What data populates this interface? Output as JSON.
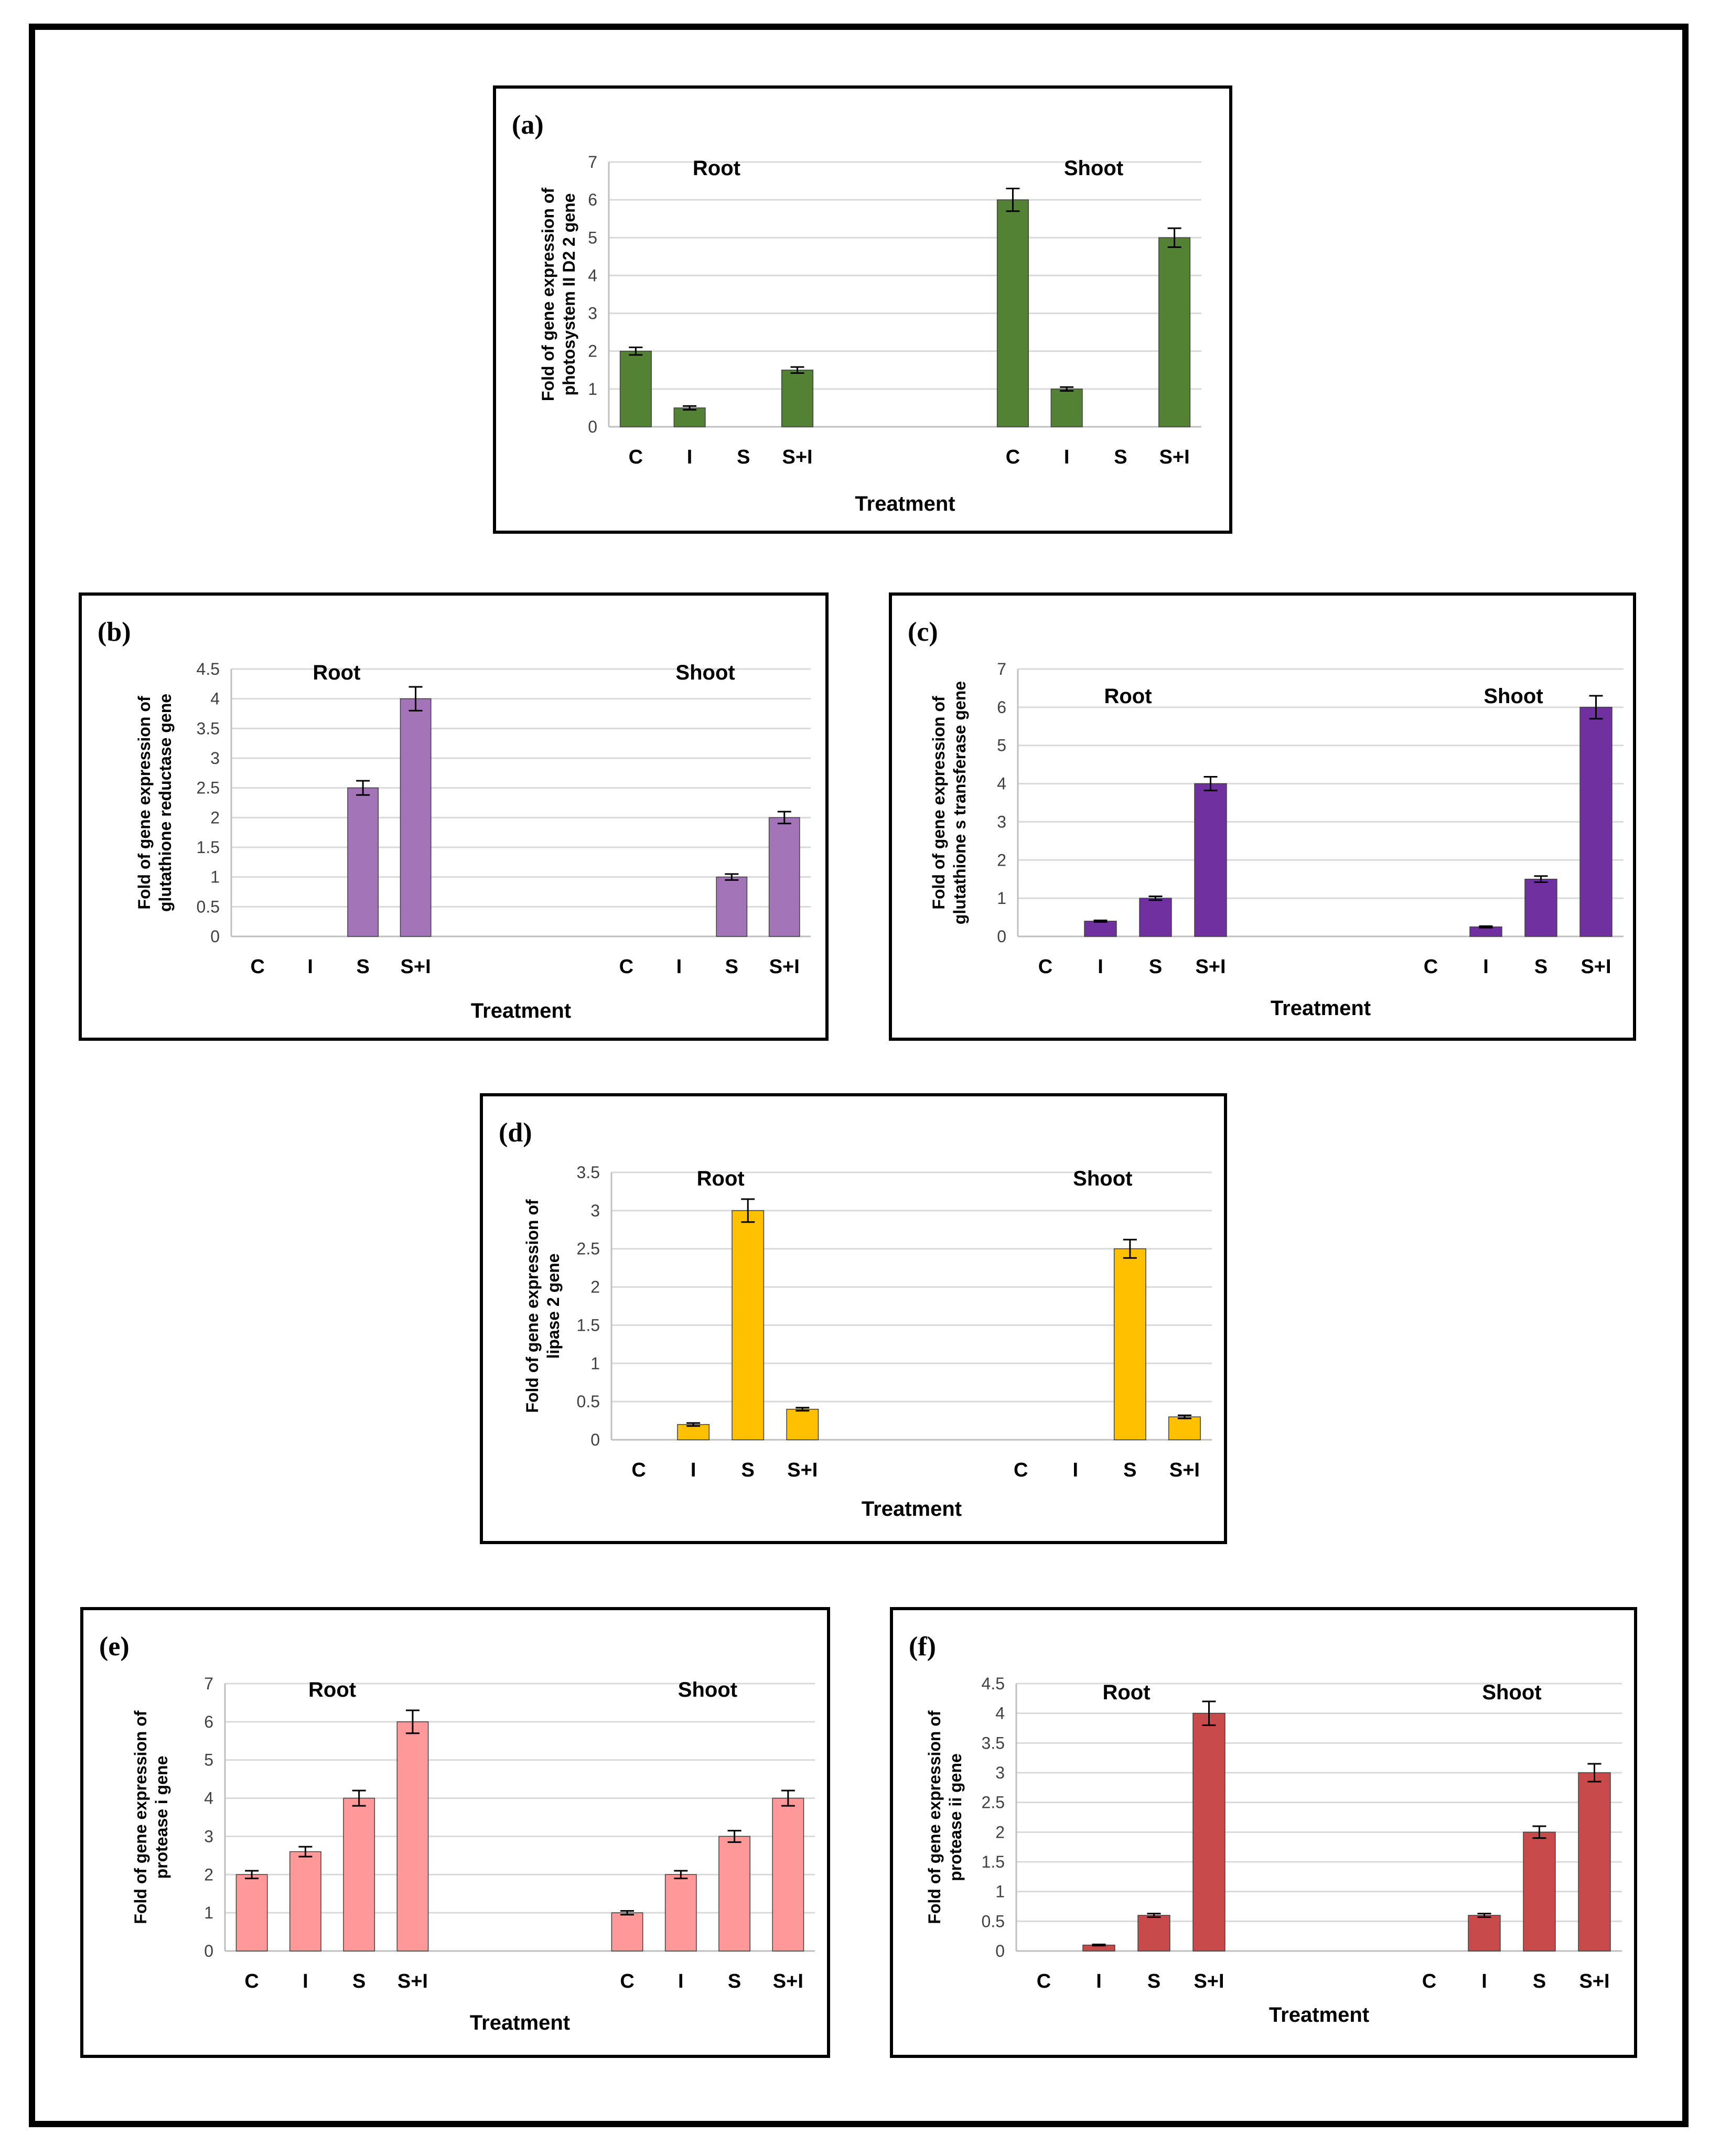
{
  "chart_data": [
    {
      "type": "bar",
      "panel_label": "(a)",
      "categories": [
        "C",
        "I",
        "S",
        "S+I",
        "C",
        "I",
        "S",
        "S+I"
      ],
      "groups": [
        "Root",
        "Shoot"
      ],
      "values": [
        2,
        0.5,
        0,
        1.5,
        6,
        1,
        0,
        5
      ],
      "errors": [
        0.1,
        0.05,
        0,
        0.08,
        0.3,
        0.05,
        0,
        0.25
      ],
      "ylabel": [
        "Fold of gene expression of",
        "photosystem II D2 2 gene"
      ],
      "xlabel": "Treatment",
      "ylim": [
        0,
        7
      ],
      "yticks": [
        0,
        1,
        2,
        3,
        4,
        5,
        6,
        7
      ],
      "ytick_labels": [
        "0",
        "1",
        "2",
        "3",
        "4",
        "5",
        "6",
        "7"
      ],
      "grid": true,
      "color": "#548235"
    },
    {
      "type": "bar",
      "panel_label": "(b)",
      "categories": [
        "C",
        "I",
        "S",
        "S+I",
        "C",
        "I",
        "S",
        "S+I"
      ],
      "groups": [
        "Root",
        "Shoot"
      ],
      "values": [
        0,
        0,
        2.5,
        4,
        0,
        0,
        1,
        2
      ],
      "errors": [
        0,
        0,
        0.12,
        0.2,
        0,
        0,
        0.05,
        0.1
      ],
      "ylabel": [
        "Fold of gene expression of",
        "glutathione reductase gene"
      ],
      "xlabel": "Treatment",
      "ylim": [
        0,
        4.5
      ],
      "yticks": [
        0,
        0.5,
        1,
        1.5,
        2,
        2.5,
        3,
        3.5,
        4,
        4.5
      ],
      "ytick_labels": [
        "0",
        "0.5",
        "1",
        "1.5",
        "2",
        "2.5",
        "3",
        "3.5",
        "4",
        "4.5"
      ],
      "grid": true,
      "color": "#A374B8"
    },
    {
      "type": "bar",
      "panel_label": "(c)",
      "categories": [
        "C",
        "I",
        "S",
        "S+I",
        "C",
        "I",
        "S",
        "S+I"
      ],
      "groups": [
        "Root",
        "Shoot"
      ],
      "values": [
        0,
        0.4,
        1,
        4,
        0,
        0.25,
        1.5,
        6
      ],
      "errors": [
        0,
        0.02,
        0.05,
        0.18,
        0,
        0.02,
        0.08,
        0.3
      ],
      "ylabel": [
        "Fold of gene expression of",
        "glutathione s transferase gene"
      ],
      "xlabel": "Treatment",
      "ylim": [
        0,
        7
      ],
      "yticks": [
        0,
        1,
        2,
        3,
        4,
        5,
        6,
        7
      ],
      "ytick_labels": [
        "0",
        "1",
        "2",
        "3",
        "4",
        "5",
        "6",
        "7"
      ],
      "grid": true,
      "color": "#7030A0"
    },
    {
      "type": "bar",
      "panel_label": "(d)",
      "categories": [
        "C",
        "I",
        "S",
        "S+I",
        "C",
        "I",
        "S",
        "S+I"
      ],
      "groups": [
        "Root",
        "Shoot"
      ],
      "values": [
        0,
        0.2,
        3,
        0.4,
        0,
        0,
        2.5,
        0.3
      ],
      "errors": [
        0,
        0.02,
        0.15,
        0.02,
        0,
        0,
        0.12,
        0.02
      ],
      "ylabel": [
        "Fold of gene expression of",
        "lipase 2 gene"
      ],
      "xlabel": "Treatment",
      "ylim": [
        0,
        3.5
      ],
      "yticks": [
        0,
        0.5,
        1,
        1.5,
        2,
        2.5,
        3,
        3.5
      ],
      "ytick_labels": [
        "0",
        "0.5",
        "1",
        "1.5",
        "2",
        "2.5",
        "3",
        "3.5"
      ],
      "grid": true,
      "color": "#FFC000"
    },
    {
      "type": "bar",
      "panel_label": "(e)",
      "categories": [
        "C",
        "I",
        "S",
        "S+I",
        "C",
        "I",
        "S",
        "S+I"
      ],
      "groups": [
        "Root",
        "Shoot"
      ],
      "values": [
        2,
        2.6,
        4,
        6,
        1,
        2,
        3,
        4
      ],
      "errors": [
        0.1,
        0.13,
        0.2,
        0.3,
        0.05,
        0.1,
        0.15,
        0.2
      ],
      "ylabel": [
        "Fold of gene expression of",
        "protease i gene"
      ],
      "xlabel": "Treatment",
      "ylim": [
        0,
        7
      ],
      "yticks": [
        0,
        1,
        2,
        3,
        4,
        5,
        6,
        7
      ],
      "ytick_labels": [
        "0",
        "1",
        "2",
        "3",
        "4",
        "5",
        "6",
        "7"
      ],
      "grid": true,
      "color": "#FF9999"
    },
    {
      "type": "bar",
      "panel_label": "(f)",
      "categories": [
        "C",
        "I",
        "S",
        "S+I",
        "C",
        "I",
        "S",
        "S+I"
      ],
      "groups": [
        "Root",
        "Shoot"
      ],
      "values": [
        0,
        0.1,
        0.6,
        4,
        0,
        0.6,
        2,
        3
      ],
      "errors": [
        0,
        0.01,
        0.03,
        0.2,
        0,
        0.03,
        0.1,
        0.15
      ],
      "ylabel": [
        "Fold of gene expression of",
        "protease ii gene"
      ],
      "xlabel": "Treatment",
      "ylim": [
        0,
        4.5
      ],
      "yticks": [
        0,
        0.5,
        1,
        1.5,
        2,
        2.5,
        3,
        3.5,
        4,
        4.5
      ],
      "ytick_labels": [
        "0",
        "0.5",
        "1",
        "1.5",
        "2",
        "2.5",
        "3",
        "3.5",
        "4",
        "4.5"
      ],
      "grid": true,
      "color": "#C94A4A"
    }
  ]
}
